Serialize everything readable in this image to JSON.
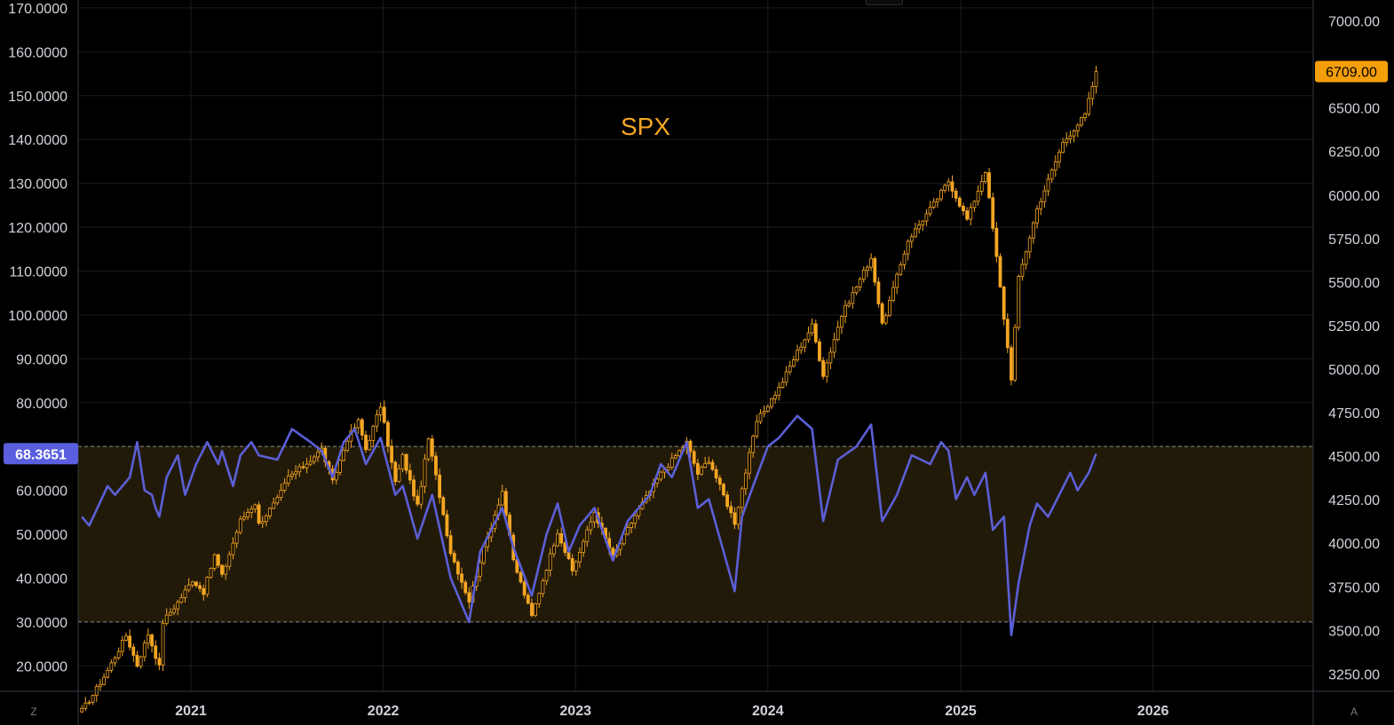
{
  "symbol": "SPX",
  "colors": {
    "background": "#000000",
    "grid": "#1c1c1c",
    "axis_line": "#363a45",
    "candle": "#f5a623",
    "rsi_line": "#5b5fd6",
    "rsi_band_fill": "#221a08",
    "band_border": "#8a8a8a",
    "rsi_badge": "#5a5fe0",
    "price_badge": "#f59e0b",
    "text": "#d1d4dc",
    "title": "#f5a623"
  },
  "left_axis": {
    "labels": [
      "170.0000",
      "160.0000",
      "150.0000",
      "140.0000",
      "130.0000",
      "120.0000",
      "110.0000",
      "100.0000",
      "90.0000",
      "80.0000",
      "60.0000",
      "50.0000",
      "40.0000",
      "30.0000",
      "20.0000"
    ],
    "current_label": "68.3651"
  },
  "right_axis": {
    "labels": [
      "7000.00",
      "6500.00",
      "6250.00",
      "6000.00",
      "5750.00",
      "5500.00",
      "5250.00",
      "5000.00",
      "4750.00",
      "4500.00",
      "4250.00",
      "4000.00",
      "3750.00",
      "3500.00",
      "3250.00"
    ],
    "current_label": "6709.00"
  },
  "x_axis": {
    "labels": [
      "2021",
      "2022",
      "2023",
      "2024",
      "2025",
      "2026"
    ]
  },
  "buttons": {
    "left": "Z",
    "right": "A"
  },
  "chart_data": [
    {
      "type": "candlestick",
      "title": "SPX",
      "interval": "weekly",
      "x_range": [
        "2020-06",
        "2026-11"
      ],
      "ylim": [
        3150,
        7120
      ],
      "y_ticks": [
        3250,
        3500,
        3750,
        4000,
        4250,
        4500,
        4750,
        5000,
        5250,
        5500,
        5750,
        6000,
        6250,
        6500,
        7000
      ],
      "last_value": 6709.0,
      "close_path": [
        {
          "x": "2020-06-08",
          "y": 3040
        },
        {
          "x": "2020-06-29",
          "y": 3130
        },
        {
          "x": "2020-07-27",
          "y": 3270
        },
        {
          "x": "2020-08-31",
          "y": 3470
        },
        {
          "x": "2020-09-21",
          "y": 3300
        },
        {
          "x": "2020-10-12",
          "y": 3480
        },
        {
          "x": "2020-11-02",
          "y": 3290
        },
        {
          "x": "2020-11-09",
          "y": 3550
        },
        {
          "x": "2020-12-07",
          "y": 3660
        },
        {
          "x": "2021-01-04",
          "y": 3790
        },
        {
          "x": "2021-01-25",
          "y": 3720
        },
        {
          "x": "2021-02-15",
          "y": 3930
        },
        {
          "x": "2021-03-01",
          "y": 3810
        },
        {
          "x": "2021-04-05",
          "y": 4130
        },
        {
          "x": "2021-05-03",
          "y": 4230
        },
        {
          "x": "2021-05-10",
          "y": 4110
        },
        {
          "x": "2021-06-14",
          "y": 4250
        },
        {
          "x": "2021-07-05",
          "y": 4380
        },
        {
          "x": "2021-08-02",
          "y": 4440
        },
        {
          "x": "2021-09-06",
          "y": 4540
        },
        {
          "x": "2021-09-27",
          "y": 4350
        },
        {
          "x": "2021-10-25",
          "y": 4600
        },
        {
          "x": "2021-11-15",
          "y": 4700
        },
        {
          "x": "2021-11-29",
          "y": 4540
        },
        {
          "x": "2021-12-27",
          "y": 4790
        },
        {
          "x": "2022-01-24",
          "y": 4350
        },
        {
          "x": "2022-02-07",
          "y": 4500
        },
        {
          "x": "2022-03-07",
          "y": 4210
        },
        {
          "x": "2022-03-28",
          "y": 4600
        },
        {
          "x": "2022-05-09",
          "y": 3950
        },
        {
          "x": "2022-06-13",
          "y": 3670
        },
        {
          "x": "2022-07-04",
          "y": 3900
        },
        {
          "x": "2022-08-15",
          "y": 4300
        },
        {
          "x": "2022-09-05",
          "y": 3900
        },
        {
          "x": "2022-10-10",
          "y": 3580
        },
        {
          "x": "2022-11-28",
          "y": 4070
        },
        {
          "x": "2022-12-26",
          "y": 3840
        },
        {
          "x": "2023-02-06",
          "y": 4180
        },
        {
          "x": "2023-03-13",
          "y": 3920
        },
        {
          "x": "2023-04-24",
          "y": 4160
        },
        {
          "x": "2023-06-12",
          "y": 4400
        },
        {
          "x": "2023-07-31",
          "y": 4580
        },
        {
          "x": "2023-08-21",
          "y": 4400
        },
        {
          "x": "2023-09-11",
          "y": 4480
        },
        {
          "x": "2023-10-30",
          "y": 4120
        },
        {
          "x": "2023-12-11",
          "y": 4700
        },
        {
          "x": "2024-01-22",
          "y": 4890
        },
        {
          "x": "2024-02-26",
          "y": 5100
        },
        {
          "x": "2024-03-25",
          "y": 5250
        },
        {
          "x": "2024-04-15",
          "y": 4970
        },
        {
          "x": "2024-05-20",
          "y": 5310
        },
        {
          "x": "2024-07-15",
          "y": 5640
        },
        {
          "x": "2024-08-05",
          "y": 5250
        },
        {
          "x": "2024-09-23",
          "y": 5740
        },
        {
          "x": "2024-11-11",
          "y": 5950
        },
        {
          "x": "2024-12-09",
          "y": 6080
        },
        {
          "x": "2025-01-13",
          "y": 5860
        },
        {
          "x": "2025-02-17",
          "y": 6140
        },
        {
          "x": "2025-03-10",
          "y": 5640
        },
        {
          "x": "2025-04-07",
          "y": 4950
        },
        {
          "x": "2025-04-21",
          "y": 5520
        },
        {
          "x": "2025-05-26",
          "y": 5920
        },
        {
          "x": "2025-07-14",
          "y": 6300
        },
        {
          "x": "2025-08-25",
          "y": 6460
        },
        {
          "x": "2025-09-15",
          "y": 6709
        }
      ]
    },
    {
      "type": "line",
      "indicator": "RSI",
      "ylim": [
        14.2,
        171.8
      ],
      "y_ticks": [
        20,
        30,
        40,
        50,
        60,
        70,
        80,
        90,
        100,
        110,
        120,
        130,
        140,
        150,
        160,
        170
      ],
      "bands": [
        30,
        70
      ],
      "last_value": 68.3651,
      "values": [
        {
          "x": "2020-06-08",
          "y": 54
        },
        {
          "x": "2020-06-22",
          "y": 52
        },
        {
          "x": "2020-07-27",
          "y": 61
        },
        {
          "x": "2020-08-10",
          "y": 59
        },
        {
          "x": "2020-09-07",
          "y": 63
        },
        {
          "x": "2020-09-21",
          "y": 71
        },
        {
          "x": "2020-10-05",
          "y": 60
        },
        {
          "x": "2020-10-19",
          "y": 59
        },
        {
          "x": "2020-10-26",
          "y": 56
        },
        {
          "x": "2020-11-02",
          "y": 54
        },
        {
          "x": "2020-11-16",
          "y": 63
        },
        {
          "x": "2020-12-07",
          "y": 68
        },
        {
          "x": "2020-12-21",
          "y": 59
        },
        {
          "x": "2021-01-11",
          "y": 66
        },
        {
          "x": "2021-02-01",
          "y": 71
        },
        {
          "x": "2021-02-22",
          "y": 66
        },
        {
          "x": "2021-03-01",
          "y": 69
        },
        {
          "x": "2021-03-22",
          "y": 61
        },
        {
          "x": "2021-04-05",
          "y": 68
        },
        {
          "x": "2021-04-26",
          "y": 71
        },
        {
          "x": "2021-05-10",
          "y": 68
        },
        {
          "x": "2021-06-14",
          "y": 67
        },
        {
          "x": "2021-07-12",
          "y": 74
        },
        {
          "x": "2021-08-16",
          "y": 71
        },
        {
          "x": "2021-09-06",
          "y": 69
        },
        {
          "x": "2021-09-27",
          "y": 63
        },
        {
          "x": "2021-10-18",
          "y": 71
        },
        {
          "x": "2021-11-08",
          "y": 74
        },
        {
          "x": "2021-11-29",
          "y": 66
        },
        {
          "x": "2021-12-27",
          "y": 72
        },
        {
          "x": "2022-01-24",
          "y": 59
        },
        {
          "x": "2022-02-07",
          "y": 61
        },
        {
          "x": "2022-03-07",
          "y": 49
        },
        {
          "x": "2022-04-04",
          "y": 59
        },
        {
          "x": "2022-05-09",
          "y": 40
        },
        {
          "x": "2022-06-13",
          "y": 30
        },
        {
          "x": "2022-07-04",
          "y": 46
        },
        {
          "x": "2022-08-15",
          "y": 56
        },
        {
          "x": "2022-09-05",
          "y": 47
        },
        {
          "x": "2022-10-10",
          "y": 36
        },
        {
          "x": "2022-11-07",
          "y": 50
        },
        {
          "x": "2022-11-28",
          "y": 57
        },
        {
          "x": "2022-12-19",
          "y": 46
        },
        {
          "x": "2023-01-09",
          "y": 52
        },
        {
          "x": "2023-02-06",
          "y": 56
        },
        {
          "x": "2023-03-13",
          "y": 44
        },
        {
          "x": "2023-04-10",
          "y": 53
        },
        {
          "x": "2023-05-22",
          "y": 59
        },
        {
          "x": "2023-06-12",
          "y": 66
        },
        {
          "x": "2023-07-03",
          "y": 63
        },
        {
          "x": "2023-07-31",
          "y": 71
        },
        {
          "x": "2023-08-21",
          "y": 56
        },
        {
          "x": "2023-09-11",
          "y": 58
        },
        {
          "x": "2023-10-09",
          "y": 46
        },
        {
          "x": "2023-10-30",
          "y": 37
        },
        {
          "x": "2023-11-13",
          "y": 54
        },
        {
          "x": "2023-12-04",
          "y": 61
        },
        {
          "x": "2024-01-01",
          "y": 70
        },
        {
          "x": "2024-01-22",
          "y": 72
        },
        {
          "x": "2024-02-26",
          "y": 77
        },
        {
          "x": "2024-03-25",
          "y": 74
        },
        {
          "x": "2024-04-15",
          "y": 53
        },
        {
          "x": "2024-05-13",
          "y": 67
        },
        {
          "x": "2024-06-17",
          "y": 70
        },
        {
          "x": "2024-07-15",
          "y": 75
        },
        {
          "x": "2024-08-05",
          "y": 53
        },
        {
          "x": "2024-09-02",
          "y": 59
        },
        {
          "x": "2024-09-30",
          "y": 68
        },
        {
          "x": "2024-11-04",
          "y": 66
        },
        {
          "x": "2024-11-25",
          "y": 71
        },
        {
          "x": "2024-12-09",
          "y": 69
        },
        {
          "x": "2024-12-23",
          "y": 58
        },
        {
          "x": "2025-01-13",
          "y": 63
        },
        {
          "x": "2025-01-27",
          "y": 59
        },
        {
          "x": "2025-02-17",
          "y": 64
        },
        {
          "x": "2025-03-03",
          "y": 51
        },
        {
          "x": "2025-03-24",
          "y": 54
        },
        {
          "x": "2025-04-07",
          "y": 27
        },
        {
          "x": "2025-04-21",
          "y": 39
        },
        {
          "x": "2025-05-12",
          "y": 52
        },
        {
          "x": "2025-05-26",
          "y": 57
        },
        {
          "x": "2025-06-16",
          "y": 54
        },
        {
          "x": "2025-07-07",
          "y": 59
        },
        {
          "x": "2025-07-28",
          "y": 64
        },
        {
          "x": "2025-08-11",
          "y": 60
        },
        {
          "x": "2025-09-01",
          "y": 64
        },
        {
          "x": "2025-09-15",
          "y": 68.3651
        }
      ]
    }
  ]
}
